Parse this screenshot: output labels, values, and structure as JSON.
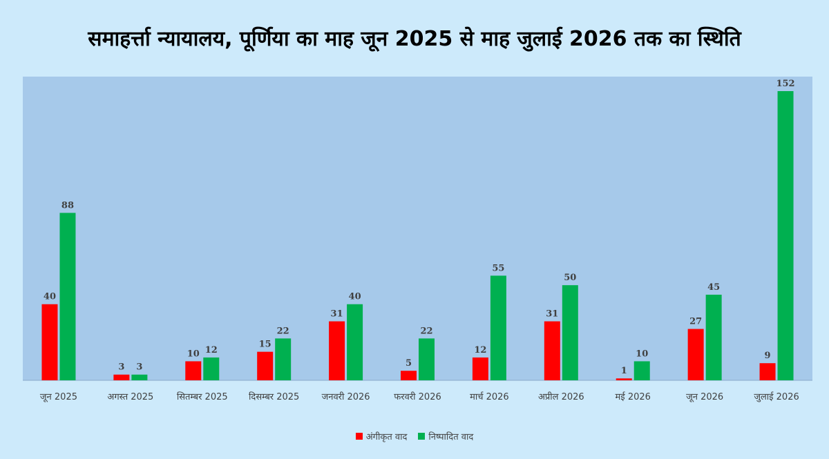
{
  "title": "समाहर्त्ता न्यायालय, पूर्णिया का माह जून 2025 से माह जुलाई 2026 तक का स्थिति",
  "colors": {
    "received": "#ff0000",
    "disposed": "#00b050",
    "plot_bg": "#a6c9ea"
  },
  "chart_data": {
    "type": "bar",
    "title": "समाहर्त्ता न्यायालय, पूर्णिया का माह जून 2025 से माह जुलाई 2026 तक का स्थिति",
    "xlabel": "",
    "ylabel": "",
    "ylim": [
      0,
      160
    ],
    "grid": false,
    "legend": "bottom-center",
    "categories": [
      "जून 2025",
      "अगस्त 2025",
      "सितम्बर 2025",
      "दिसम्बर 2025",
      "जनवरी 2026",
      "फरवरी 2026",
      "मार्च 2026",
      "अप्रील 2026",
      "मई 2026",
      "जून 2026",
      "जुलाई 2026"
    ],
    "series": [
      {
        "name": "अंगीकृत वाद",
        "color": "#ff0000",
        "values": [
          40,
          3,
          10,
          15,
          31,
          5,
          12,
          31,
          1,
          27,
          9
        ]
      },
      {
        "name": "निष्पादित वाद",
        "color": "#00b050",
        "values": [
          88,
          3,
          12,
          22,
          40,
          22,
          55,
          50,
          10,
          45,
          152
        ]
      }
    ]
  }
}
